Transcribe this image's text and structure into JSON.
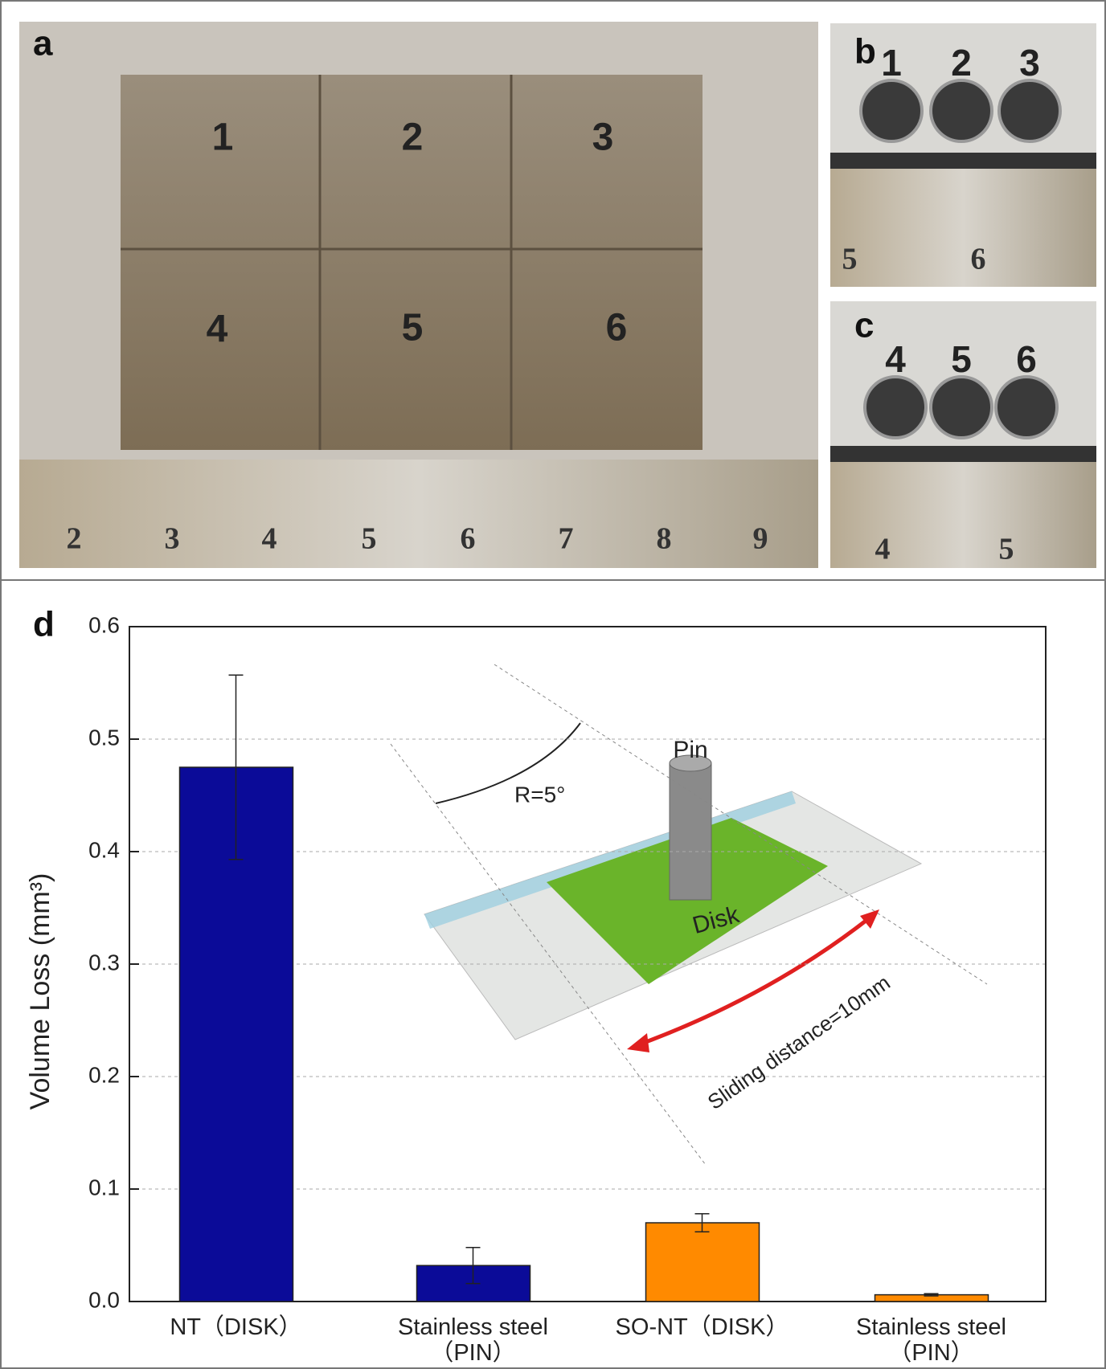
{
  "photo_panels": [
    {
      "label": "a",
      "samples": [
        "1",
        "2",
        "3",
        "4",
        "5",
        "6"
      ],
      "ruler": [
        "2",
        "3",
        "4",
        "5",
        "6",
        "7",
        "8",
        "9"
      ]
    },
    {
      "label": "b",
      "samples": [
        "1",
        "2",
        "3"
      ],
      "ruler": [
        "5",
        "6"
      ]
    },
    {
      "label": "c",
      "samples": [
        "4",
        "5",
        "6"
      ],
      "ruler": [
        "4",
        "5"
      ]
    }
  ],
  "chart_data": {
    "type": "bar",
    "panel_label": "d",
    "y_label": "Volume Loss (mm³)",
    "categories": [
      "NT（DISK）",
      "Stainless steel\n（PIN）",
      "SO-NT（DISK）",
      "Stainless steel\n（PIN）"
    ],
    "values": [
      0.475,
      0.032,
      0.07,
      0.006
    ],
    "errors": [
      0.082,
      0.016,
      0.008,
      0.001
    ],
    "colors": [
      "#0b0b98",
      "#0b0b98",
      "#ff8a00",
      "#ff8a00"
    ],
    "ylim": [
      0,
      0.6
    ],
    "yticks": [
      {
        "value": 0,
        "label": "0.0"
      },
      0.1,
      0.2,
      0.3,
      0.4,
      0.5,
      0.6
    ],
    "grid": true,
    "inset": {
      "pin": "Pin",
      "disk": "Disk",
      "angle": "R=5°",
      "distance": "Sliding distance=10mm"
    }
  }
}
